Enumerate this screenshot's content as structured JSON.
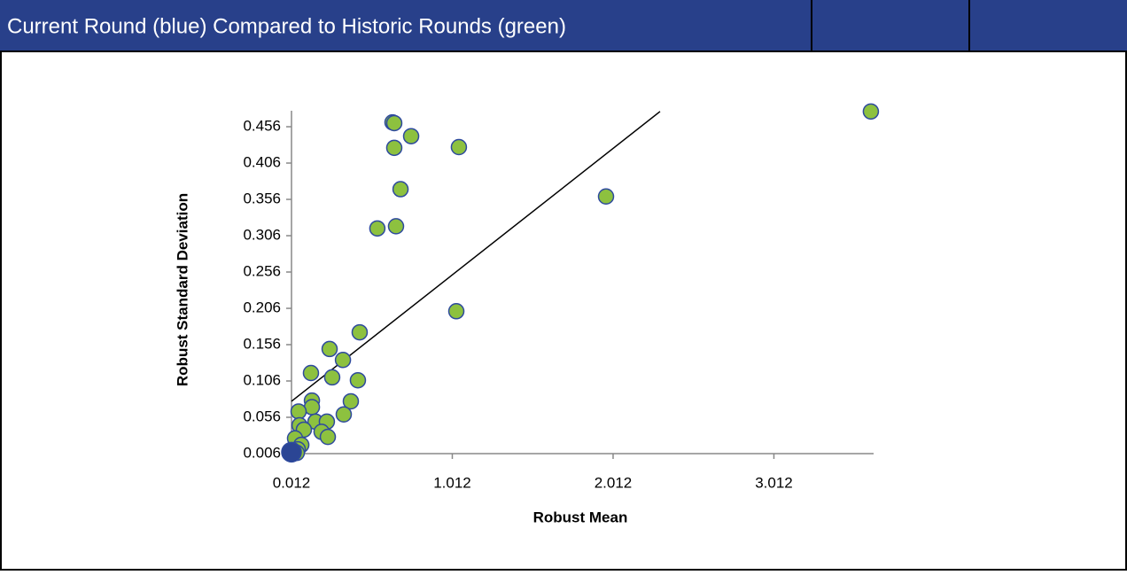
{
  "header": {
    "title": "Current Round (blue) Compared to Historic Rounds (green)"
  },
  "chart_data": {
    "type": "scatter",
    "xlabel": "Robust Mean",
    "ylabel": "Robust Standard Deviation",
    "xlim": [
      0.012,
      3.632
    ],
    "xticks": [
      0.012,
      1.012,
      2.012,
      3.012
    ],
    "ylim": [
      0.006,
      0.478
    ],
    "yticks": [
      0.006,
      0.056,
      0.106,
      0.156,
      0.206,
      0.256,
      0.306,
      0.356,
      0.406,
      0.456
    ],
    "series": [
      {
        "color": "#8dc13f",
        "x": [
          3.615,
          0.64,
          0.651,
          0.756,
          1.053,
          0.651,
          0.69,
          1.968,
          0.546,
          0.662,
          1.037,
          0.436,
          0.249,
          0.332,
          0.133,
          0.265,
          0.425,
          0.139,
          0.381,
          0.139,
          0.056,
          0.337,
          0.161,
          0.232,
          0.062,
          0.089,
          0.199,
          0.238,
          0.034,
          0.073,
          0.051,
          0.045
        ],
        "y": [
          0.477,
          0.462,
          0.461,
          0.443,
          0.428,
          0.427,
          0.37,
          0.36,
          0.316,
          0.319,
          0.202,
          0.173,
          0.15,
          0.135,
          0.117,
          0.111,
          0.107,
          0.079,
          0.078,
          0.07,
          0.064,
          0.06,
          0.05,
          0.05,
          0.045,
          0.039,
          0.036,
          0.029,
          0.027,
          0.018,
          0.012,
          0.007
        ]
      },
      {
        "color": "#2b4594",
        "x": [
          0.012
        ],
        "y": [
          0.008
        ]
      }
    ],
    "trendline": {
      "color": "#000000",
      "x": [
        0.012,
        2.304
      ],
      "y": [
        0.078,
        0.477
      ]
    }
  }
}
